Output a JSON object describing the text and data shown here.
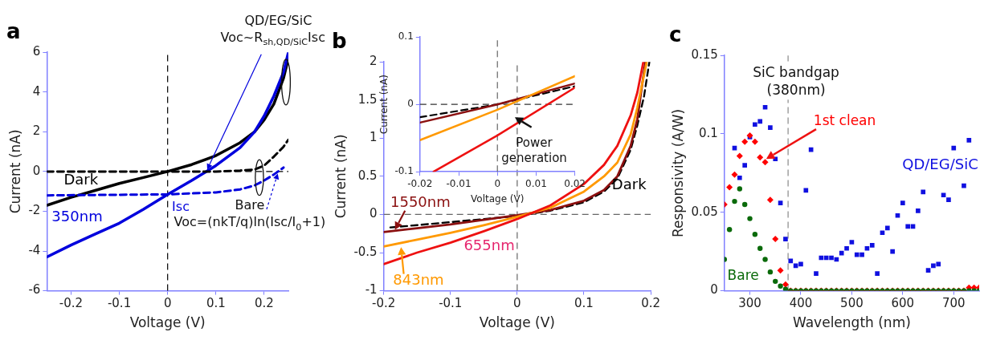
{
  "chart_data": [
    {
      "type": "line",
      "title": "a",
      "xlabel": "Voltage (V)",
      "ylabel": "Current (nA)",
      "xlim": [
        -0.25,
        0.25
      ],
      "xticks": [
        -0.2,
        -0.1,
        0,
        0.1,
        0.2
      ],
      "ylim": [
        -6,
        6
      ],
      "yticks": [
        -6,
        -4,
        -2,
        0,
        2,
        4,
        6
      ],
      "line_style": "solid",
      "marker": "none",
      "series": [
        {
          "name": "Dark",
          "color": "#000000",
          "x": [
            -0.25,
            -0.2,
            -0.15,
            -0.1,
            -0.05,
            0,
            0.05,
            0.1,
            0.15,
            0.18,
            0.2,
            0.22,
            0.24,
            0.25
          ],
          "values": [
            -1.7,
            -1.3,
            -0.95,
            -0.6,
            -0.3,
            0,
            0.35,
            0.8,
            1.45,
            2.0,
            2.6,
            3.4,
            4.7,
            5.7
          ]
        },
        {
          "name": "350nm",
          "color": "#0000dd",
          "x": [
            -0.25,
            -0.2,
            -0.15,
            -0.1,
            -0.05,
            0,
            0.05,
            0.08,
            0.1,
            0.15,
            0.18,
            0.2,
            0.22,
            0.24,
            0.25
          ],
          "values": [
            -4.3,
            -3.7,
            -3.15,
            -2.6,
            -1.9,
            -1.15,
            -0.45,
            0,
            0.3,
            1.2,
            2.0,
            2.8,
            3.8,
            5.0,
            6.0
          ]
        },
        {
          "color": "#000000",
          "line_style": "dashed",
          "x": [
            -0.25,
            0.1,
            0.15,
            0.18,
            0.2,
            0.22,
            0.24,
            0.25
          ],
          "values": [
            0,
            0,
            0.05,
            0.1,
            0.3,
            0.75,
            1.25,
            1.6
          ]
        },
        {
          "color": "#0000dd",
          "line_style": "dashed",
          "x": [
            -0.25,
            0,
            0.1,
            0.15,
            0.18,
            0.2,
            0.22,
            0.24
          ],
          "values": [
            -1.2,
            -1.15,
            -1.05,
            -0.9,
            -0.7,
            -0.45,
            -0.15,
            0.2
          ]
        }
      ],
      "ref_lines": [
        {
          "axis": "y",
          "value": 0,
          "color": "#000000",
          "line_style": "dashed"
        },
        {
          "axis": "x",
          "value": 0,
          "color": "#000000",
          "line_style": "dashed"
        }
      ],
      "annotations": [
        "QD/EG/SiC",
        "Voc~R$_{sh,QD/SiC}$Isc",
        "Isc",
        "Bare",
        "Voc=(nkT/q)ln(Isc/I$_{0}$+1)"
      ]
    },
    {
      "type": "line",
      "title": "b",
      "xlabel": "Voltage (V)",
      "ylabel": "Current (nA)",
      "xlim": [
        -0.2,
        0.2
      ],
      "xticks": [
        -0.2,
        -0.1,
        0,
        0.1,
        0.2
      ],
      "ylim": [
        -1,
        2
      ],
      "yticks": [
        -1,
        -0.5,
        0,
        0.5,
        1,
        1.5,
        2
      ],
      "line_style": "solid",
      "marker": "none",
      "series": [
        {
          "name": "Dark",
          "color": "#000000",
          "line_style": "dashed",
          "x": [
            -0.19,
            -0.15,
            -0.1,
            -0.05,
            0,
            0.05,
            0.1,
            0.13,
            0.15,
            0.17,
            0.18,
            0.19,
            0.198
          ],
          "values": [
            -0.17,
            -0.14,
            -0.1,
            -0.06,
            -0.02,
            0.05,
            0.16,
            0.3,
            0.47,
            0.85,
            1.17,
            1.55,
            2.0
          ]
        },
        {
          "name": "1550nm",
          "color": "#8b1010",
          "x": [
            -0.2,
            -0.15,
            -0.1,
            -0.05,
            0,
            0.05,
            0.1,
            0.13,
            0.15,
            0.17,
            0.18,
            0.192
          ],
          "values": [
            -0.23,
            -0.18,
            -0.13,
            -0.07,
            -0.01,
            0.06,
            0.18,
            0.32,
            0.5,
            0.9,
            1.25,
            2.0
          ]
        },
        {
          "name": "843nm",
          "color": "#ff9900",
          "x": [
            -0.2,
            -0.15,
            -0.1,
            -0.05,
            0,
            0.05,
            0.1,
            0.13,
            0.15,
            0.17,
            0.18,
            0.194
          ],
          "values": [
            -0.42,
            -0.33,
            -0.24,
            -0.14,
            -0.03,
            0.09,
            0.3,
            0.5,
            0.68,
            1.05,
            1.4,
            2.0
          ]
        },
        {
          "name": "655nm",
          "color": "#ee1111",
          "x": [
            -0.2,
            -0.15,
            -0.1,
            -0.05,
            0,
            0.05,
            0.1,
            0.13,
            0.15,
            0.17,
            0.18,
            0.189
          ],
          "values": [
            -0.65,
            -0.5,
            -0.37,
            -0.22,
            -0.06,
            0.12,
            0.4,
            0.65,
            0.9,
            1.3,
            1.6,
            2.0
          ]
        }
      ],
      "ref_lines": [
        {
          "axis": "y",
          "value": 0,
          "color": "#666666",
          "line_style": "dashed"
        },
        {
          "axis": "x",
          "value": 0,
          "color": "#666666",
          "line_style": "dashed"
        }
      ]
    },
    {
      "type": "line",
      "xlabel": "Voltage (V)",
      "ylabel": "Current (nA)",
      "xlim": [
        -0.02,
        0.02
      ],
      "xticks": [
        -0.02,
        -0.01,
        0,
        0.01,
        0.02
      ],
      "ylim": [
        -0.1,
        0.1
      ],
      "yticks": [
        -0.1,
        0,
        0.1
      ],
      "line_style": "solid",
      "marker": "none",
      "series": [
        {
          "color": "#000000",
          "line_style": "dashed",
          "x": [
            -0.02,
            0,
            0.02
          ],
          "values": [
            -0.019,
            0,
            0.027
          ]
        },
        {
          "color": "#8b1010",
          "x": [
            -0.02,
            0,
            0.02
          ],
          "values": [
            -0.027,
            0,
            0.031
          ]
        },
        {
          "color": "#ff9900",
          "x": [
            -0.02,
            0,
            0.02
          ],
          "values": [
            -0.053,
            -0.008,
            0.042
          ]
        },
        {
          "color": "#ee1111",
          "x": [
            -0.0165,
            0,
            0.02
          ],
          "values": [
            -0.1,
            -0.046,
            0.025
          ]
        }
      ],
      "ref_lines": [
        {
          "axis": "y",
          "value": 0,
          "color": "#333333",
          "line_style": "dashed"
        },
        {
          "axis": "x",
          "value": 0,
          "color": "#666666",
          "line_style": "dashed"
        }
      ],
      "annotations": [
        "Power generation"
      ]
    },
    {
      "type": "scatter",
      "title": "c",
      "xlabel": "Wavelength (nm)",
      "ylabel": "Responsivity (A/W)",
      "xlim": [
        250,
        750
      ],
      "xticks": [
        300,
        400,
        500,
        600,
        700
      ],
      "ylim": [
        0,
        0.15
      ],
      "yticks": [
        0,
        0.05,
        0.1,
        0.15
      ],
      "series": [
        {
          "name": "QD/EG/SiC",
          "color": "#1010e0",
          "marker": "square",
          "x": [
            270,
            280,
            290,
            300,
            310,
            320,
            330,
            340,
            350,
            360,
            370,
            380,
            390,
            400,
            410,
            420,
            430,
            440,
            450,
            460,
            470,
            480,
            490,
            500,
            510,
            520,
            530,
            540,
            550,
            560,
            570,
            580,
            590,
            600,
            610,
            620,
            630,
            640,
            650,
            660,
            670,
            680,
            690,
            700,
            720,
            730
          ],
          "values": [
            0.091,
            0.072,
            0.08,
            0.098,
            0.106,
            0.108,
            0.117,
            0.104,
            0.084,
            0.056,
            0.033,
            0.019,
            0.016,
            0.017,
            0.064,
            0.09,
            0.011,
            0.021,
            0.021,
            0.021,
            0.02,
            0.024,
            0.027,
            0.031,
            0.023,
            0.023,
            0.027,
            0.029,
            0.011,
            0.037,
            0.04,
            0.025,
            0.048,
            0.056,
            0.041,
            0.041,
            0.051,
            0.063,
            0.013,
            0.016,
            0.017,
            0.061,
            0.058,
            0.091,
            0.067,
            0.096
          ]
        },
        {
          "name": "1st clean",
          "color": "#ff0000",
          "marker": "diamond",
          "x": [
            250,
            260,
            270,
            280,
            290,
            300,
            310,
            320,
            330,
            340,
            350,
            360,
            370,
            380,
            390,
            400,
            410,
            420,
            430,
            440,
            450,
            460,
            470,
            480,
            490,
            500,
            510,
            520,
            530,
            540,
            550,
            560,
            570,
            580,
            590,
            600,
            610,
            620,
            630,
            640,
            650,
            660,
            670,
            680,
            690,
            700,
            710,
            720,
            730,
            740,
            750
          ],
          "values": [
            0.055,
            0.066,
            0.074,
            0.086,
            0.095,
            0.099,
            0.095,
            0.085,
            0.082,
            0.058,
            0.033,
            0.013,
            0.004,
            0,
            0,
            0,
            0,
            0,
            0,
            0,
            0,
            0,
            0,
            0,
            0,
            0,
            0,
            0,
            0,
            0,
            0,
            0,
            0,
            0,
            0,
            0,
            0,
            0,
            0,
            0,
            0,
            0,
            0,
            0,
            0,
            0,
            0,
            0,
            0.002,
            0.002,
            0.002
          ]
        },
        {
          "name": "Bare",
          "color": "#0a6a0a",
          "marker": "circle",
          "x": [
            250,
            260,
            270,
            280,
            290,
            300,
            310,
            320,
            330,
            340,
            350,
            360,
            370,
            380,
            390,
            400,
            410,
            420,
            430,
            440,
            450,
            460,
            470,
            480,
            490,
            500,
            510,
            520,
            530,
            540,
            550,
            560,
            570,
            580,
            590,
            600,
            610,
            620,
            630,
            640,
            650,
            660,
            670,
            680,
            690,
            700,
            710,
            720,
            730,
            740,
            750
          ],
          "values": [
            0.02,
            0.039,
            0.057,
            0.065,
            0.055,
            0.046,
            0.036,
            0.027,
            0.02,
            0.012,
            0.006,
            0.003,
            0.001,
            0,
            0,
            0,
            0,
            0,
            0,
            0,
            0,
            0,
            0,
            0,
            0,
            0,
            0,
            0,
            0,
            0,
            0,
            0,
            0,
            0,
            0,
            0,
            0,
            0,
            0,
            0,
            0,
            0,
            0,
            0,
            0,
            0,
            0,
            0,
            0,
            0,
            0
          ]
        }
      ],
      "ref_lines": [
        {
          "axis": "x",
          "value": 375,
          "color": "#888888",
          "line_style": "dashed",
          "label": "SiC bandgap (380nm)"
        }
      ]
    }
  ]
}
